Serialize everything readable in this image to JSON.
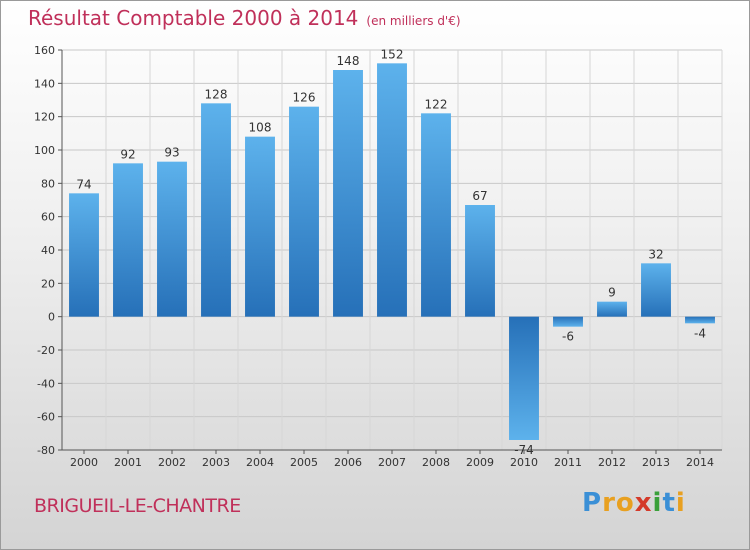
{
  "chart_data": {
    "type": "bar",
    "title": "Résultat Comptable 2000 à 2014",
    "subtitle": "(en milliers d'€)",
    "categories": [
      "2000",
      "2001",
      "2002",
      "2003",
      "2004",
      "2005",
      "2006",
      "2007",
      "2008",
      "2009",
      "2010",
      "2011",
      "2012",
      "2013",
      "2014"
    ],
    "values": [
      74,
      92,
      93,
      128,
      108,
      126,
      148,
      152,
      122,
      67,
      -74,
      -6,
      9,
      32,
      -4
    ],
    "ylim": [
      -80,
      160
    ],
    "yticks": [
      -80,
      -60,
      -40,
      -20,
      0,
      20,
      40,
      60,
      80,
      100,
      120,
      140,
      160
    ],
    "grid": true,
    "xlabel": "",
    "ylabel": ""
  },
  "city": "BRIGUEIL-LE-CHANTRE",
  "logo": {
    "letters": [
      "P",
      "r",
      "o",
      "x",
      "i",
      "t",
      "i"
    ],
    "colors": [
      "#3a8fd6",
      "#e8a020",
      "#e8a020",
      "#d43a2a",
      "#3aa03a",
      "#3a8fd6",
      "#e8a020"
    ]
  },
  "colors": {
    "bar_top": "#5aaee8",
    "bar_bottom": "#2670b8",
    "title": "#c0305a"
  }
}
